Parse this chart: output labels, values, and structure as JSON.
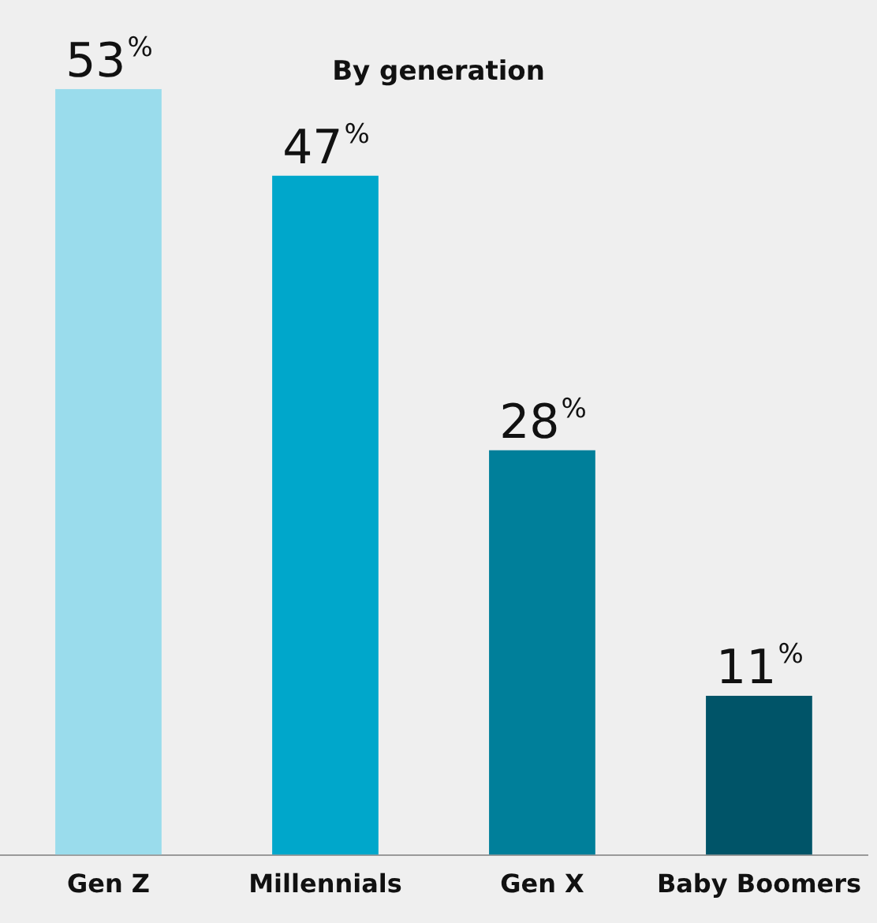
{
  "chart_data": {
    "type": "bar",
    "title": "By generation",
    "categories": [
      "Gen Z",
      "Millennials",
      "Gen X",
      "Baby Boomers"
    ],
    "values": [
      53,
      47,
      28,
      11
    ],
    "colors": [
      "#9adcec",
      "#00a7cb",
      "#007f9a",
      "#005468"
    ],
    "value_labels": [
      "53%",
      "47%",
      "28%",
      "11%"
    ],
    "grid": false,
    "legend": false
  }
}
